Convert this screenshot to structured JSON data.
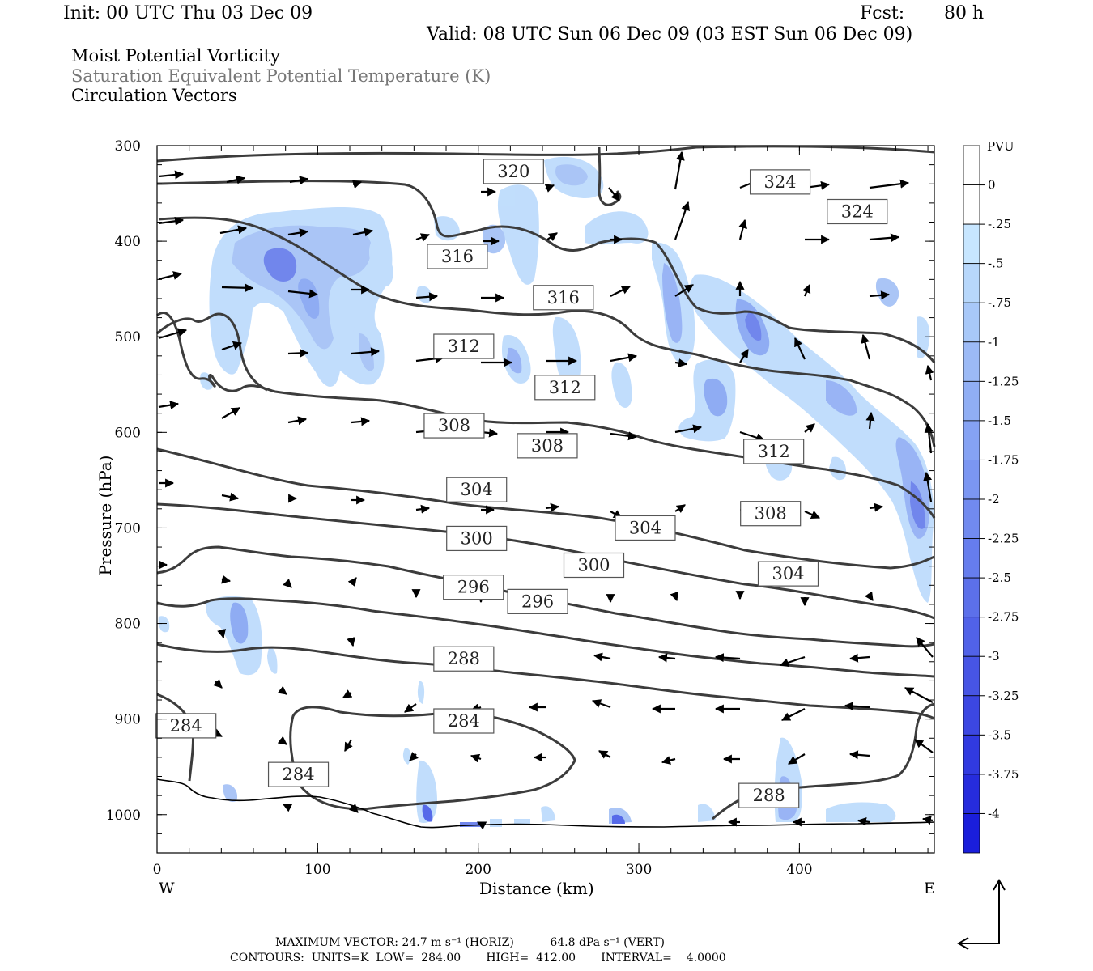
{
  "header": {
    "init": "Init: 00 UTC Thu 03 Dec 09",
    "fcst_label": "Fcst:",
    "fcst_value": "80 h",
    "valid": "Valid: 08 UTC Sun 06 Dec 09 (03 EST Sun 06 Dec 09)"
  },
  "fields": [
    {
      "label": "Moist Potential Vorticity",
      "color": "#000000"
    },
    {
      "label": "Saturation Equivalent Potential Temperature (K)",
      "color": "#777777"
    },
    {
      "label": "Circulation Vectors",
      "color": "#000000"
    }
  ],
  "footer": {
    "vector_line": "MAXIMUM VECTOR: 24.7 m s⁻¹ (HORIZ)          64.8 dPa s⁻¹ (VERT)",
    "contour_line": "CONTOURS:  UNITS=K  LOW=  284.00       HIGH=  412.00       INTERVAL=    4.0000"
  },
  "chart_data": {
    "type": "cross-section",
    "xlabel": "Distance (km)",
    "ylabel": "Pressure (hPa)",
    "x_ticks": [
      0,
      100,
      200,
      300,
      400
    ],
    "xlim": [
      0,
      484
    ],
    "y_ticks": [
      300,
      400,
      500,
      600,
      700,
      800,
      900,
      1000
    ],
    "ylim": [
      300,
      1040
    ],
    "x_end_labels": {
      "left": "W",
      "right": "E"
    },
    "colorbar": {
      "unit": "PVU",
      "levels": [
        "0",
        "-.25",
        "-.5",
        "-.75",
        "-1",
        "-1.25",
        "-1.5",
        "-1.75",
        "-2",
        "-2.25",
        "-2.5",
        "-2.75",
        "-3",
        "-3.25",
        "-3.5",
        "-3.75",
        "-4"
      ],
      "colors": [
        "#ffffff",
        "#ffffff",
        "#c7e6ff",
        "#b7d7fb",
        "#a8c8f8",
        "#9cbaf6",
        "#90aef4",
        "#85a2f3",
        "#7b96f2",
        "#718aef",
        "#667ded",
        "#5c70ea",
        "#5162e8",
        "#4755e5",
        "#3c47e2",
        "#313ae0",
        "#262cdd",
        "#1a1edb"
      ]
    },
    "contour_labels": [
      {
        "value": "320",
        "x": 222,
        "p": 327
      },
      {
        "value": "324",
        "x": 388,
        "p": 338
      },
      {
        "value": "324",
        "x": 436,
        "p": 369
      },
      {
        "value": "316",
        "x": 187,
        "p": 416
      },
      {
        "value": "316",
        "x": 253,
        "p": 459
      },
      {
        "value": "312",
        "x": 191,
        "p": 510
      },
      {
        "value": "312",
        "x": 254,
        "p": 553
      },
      {
        "value": "312",
        "x": 384,
        "p": 620
      },
      {
        "value": "308",
        "x": 185,
        "p": 593
      },
      {
        "value": "308",
        "x": 243,
        "p": 614
      },
      {
        "value": "308",
        "x": 382,
        "p": 685
      },
      {
        "value": "304",
        "x": 199,
        "p": 660
      },
      {
        "value": "304",
        "x": 304,
        "p": 700
      },
      {
        "value": "304",
        "x": 393,
        "p": 748
      },
      {
        "value": "300",
        "x": 199,
        "p": 711
      },
      {
        "value": "300",
        "x": 272,
        "p": 739
      },
      {
        "value": "296",
        "x": 197,
        "p": 762
      },
      {
        "value": "296",
        "x": 237,
        "p": 777
      },
      {
        "value": "288",
        "x": 191,
        "p": 837
      },
      {
        "value": "288",
        "x": 381,
        "p": 980
      },
      {
        "value": "284",
        "x": 18,
        "p": 907
      },
      {
        "value": "284",
        "x": 191,
        "p": 902
      },
      {
        "value": "284",
        "x": 88,
        "p": 958
      }
    ]
  }
}
